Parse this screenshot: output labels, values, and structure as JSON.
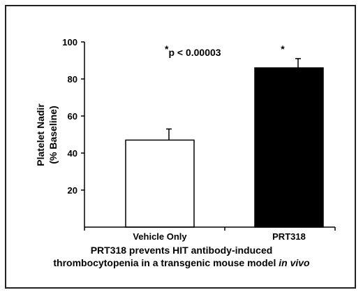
{
  "chart_data": {
    "type": "bar",
    "categories": [
      "Vehicle Only",
      "PRT318"
    ],
    "values": [
      47,
      86
    ],
    "errors": [
      6,
      5
    ],
    "bar_colors": [
      "#ffffff",
      "#000000"
    ],
    "ylabel_lines": [
      "Platelet Nadir",
      "(% Baseline)"
    ],
    "ylim": [
      0,
      100
    ],
    "yticks": [
      20,
      40,
      60,
      80,
      100
    ],
    "annotation": {
      "star": "*",
      "text": "p < 0.00003"
    },
    "significance_marker": "*",
    "caption": {
      "line1": "PRT318 prevents HIT antibody-induced",
      "line2_plain": "thrombocytopenia in a transgenic mouse model ",
      "line2_italic": "in vivo"
    }
  }
}
